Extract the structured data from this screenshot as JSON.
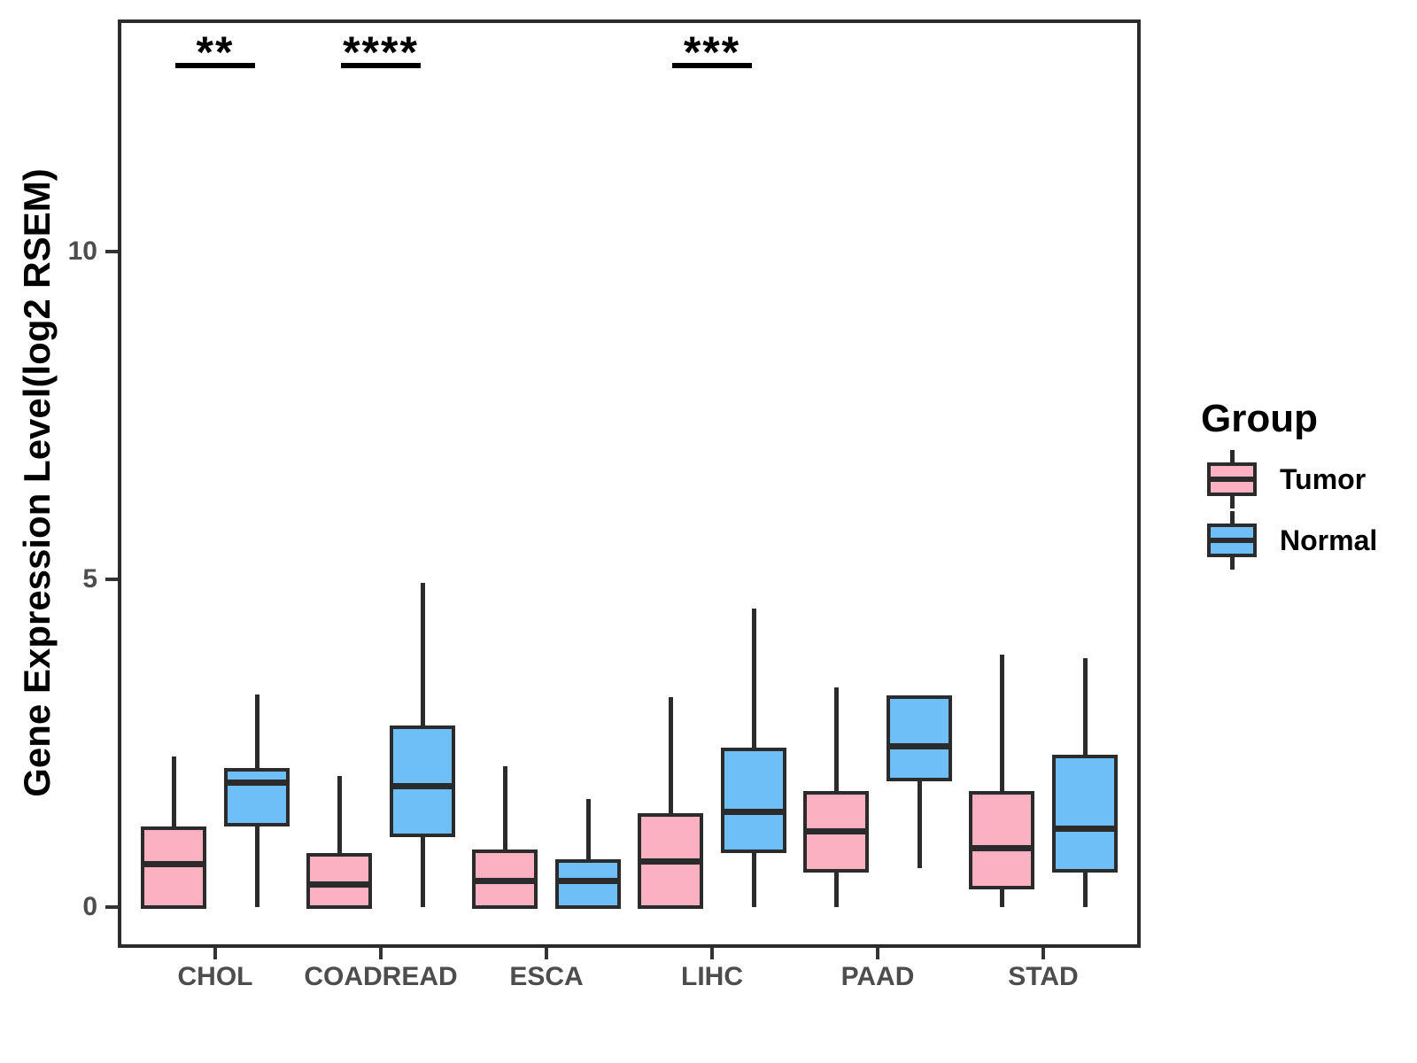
{
  "figure": {
    "ylabel": "Gene Expression Level(log2 RSEM)"
  },
  "legend": {
    "title": "Group",
    "items": [
      {
        "label": "Tumor",
        "color": "#FBB1C1"
      },
      {
        "label": "Normal",
        "color": "#6EBFF7"
      }
    ]
  },
  "chart_data": {
    "type": "boxplot",
    "title": "",
    "xlabel": "",
    "ylabel": "Gene Expression Level(log2 RSEM)",
    "categories": [
      "CHOL",
      "COADREAD",
      "ESCA",
      "LIHC",
      "PAAD",
      "STAD"
    ],
    "groups": [
      "Tumor",
      "Normal"
    ],
    "group_colors": {
      "Tumor": "#FBB1C1",
      "Normal": "#6EBFF7"
    },
    "line_color": "#2b2b2b",
    "yticks": [
      0,
      5,
      10
    ],
    "ylim": [
      -0.65,
      13.55
    ],
    "grid": false,
    "legend_position": "right",
    "series": [
      {
        "name": "Tumor",
        "boxes": [
          {
            "category": "CHOL",
            "whisker_low": 0,
            "q1": 0,
            "median": 0.65,
            "q3": 1.2,
            "whisker_high": 2.3
          },
          {
            "category": "COADREAD",
            "whisker_low": 0,
            "q1": 0,
            "median": 0.35,
            "q3": 0.8,
            "whisker_high": 2.0
          },
          {
            "category": "ESCA",
            "whisker_low": 0,
            "q1": 0,
            "median": 0.4,
            "q3": 0.85,
            "whisker_high": 2.15
          },
          {
            "category": "LIHC",
            "whisker_low": 0,
            "q1": 0,
            "median": 0.7,
            "q3": 1.4,
            "whisker_high": 3.2
          },
          {
            "category": "PAAD",
            "whisker_low": 0,
            "q1": 0.55,
            "median": 1.15,
            "q3": 1.75,
            "whisker_high": 3.35
          },
          {
            "category": "STAD",
            "whisker_low": 0,
            "q1": 0.3,
            "median": 0.9,
            "q3": 1.75,
            "whisker_high": 3.85
          }
        ]
      },
      {
        "name": "Normal",
        "boxes": [
          {
            "category": "CHOL",
            "whisker_low": 0,
            "q1": 1.25,
            "median": 1.9,
            "q3": 2.1,
            "whisker_high": 3.25
          },
          {
            "category": "COADREAD",
            "whisker_low": 0,
            "q1": 1.1,
            "median": 1.85,
            "q3": 2.75,
            "whisker_high": 4.95
          },
          {
            "category": "ESCA",
            "whisker_low": 0,
            "q1": 0,
            "median": 0.4,
            "q3": 0.7,
            "whisker_high": 1.65
          },
          {
            "category": "LIHC",
            "whisker_low": 0,
            "q1": 0.85,
            "median": 1.45,
            "q3": 2.4,
            "whisker_high": 4.55
          },
          {
            "category": "PAAD",
            "whisker_low": 0.6,
            "q1": 1.95,
            "median": 2.45,
            "q3": 3.2,
            "whisker_high": 3.2
          },
          {
            "category": "STAD",
            "whisker_low": 0,
            "q1": 0.55,
            "median": 1.2,
            "q3": 2.3,
            "whisker_high": 3.8
          }
        ]
      }
    ],
    "annotations": [
      {
        "category": "CHOL",
        "text": "**"
      },
      {
        "category": "COADREAD",
        "text": "****"
      },
      {
        "category": "LIHC",
        "text": "***"
      }
    ]
  }
}
